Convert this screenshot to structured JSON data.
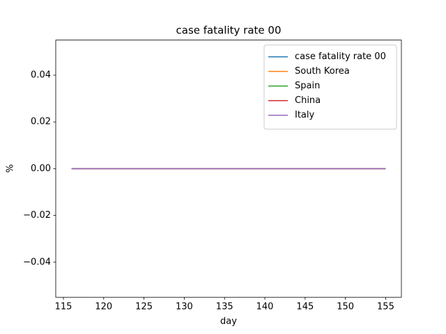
{
  "chart_data": {
    "type": "line",
    "title": "case fatality rate 00",
    "xlabel": "day",
    "ylabel": "%",
    "x": [
      116,
      117,
      118,
      119,
      120,
      121,
      122,
      123,
      124,
      125,
      126,
      127,
      128,
      129,
      130,
      131,
      132,
      133,
      134,
      135,
      136,
      137,
      138,
      139,
      140,
      141,
      142,
      143,
      144,
      145,
      146,
      147,
      148,
      149,
      150,
      151,
      152,
      153,
      154,
      155
    ],
    "series": [
      {
        "name": "case fatality rate 00",
        "color": "#1f77b4",
        "values": [
          0,
          0,
          0,
          0,
          0,
          0,
          0,
          0,
          0,
          0,
          0,
          0,
          0,
          0,
          0,
          0,
          0,
          0,
          0,
          0,
          0,
          0,
          0,
          0,
          0,
          0,
          0,
          0,
          0,
          0,
          0,
          0,
          0,
          0,
          0,
          0,
          0,
          0,
          0,
          0
        ]
      },
      {
        "name": "South Korea",
        "color": "#ff7f0e",
        "values": [
          0,
          0,
          0,
          0,
          0,
          0,
          0,
          0,
          0,
          0,
          0,
          0,
          0,
          0,
          0,
          0,
          0,
          0,
          0,
          0,
          0,
          0,
          0,
          0,
          0,
          0,
          0,
          0,
          0,
          0,
          0,
          0,
          0,
          0,
          0,
          0,
          0,
          0,
          0,
          0
        ]
      },
      {
        "name": "Spain",
        "color": "#2ca02c",
        "values": [
          0,
          0,
          0,
          0,
          0,
          0,
          0,
          0,
          0,
          0,
          0,
          0,
          0,
          0,
          0,
          0,
          0,
          0,
          0,
          0,
          0,
          0,
          0,
          0,
          0,
          0,
          0,
          0,
          0,
          0,
          0,
          0,
          0,
          0,
          0,
          0,
          0,
          0,
          0,
          0
        ]
      },
      {
        "name": "China",
        "color": "#d62728",
        "values": [
          0,
          0,
          0,
          0,
          0,
          0,
          0,
          0,
          0,
          0,
          0,
          0,
          0,
          0,
          0,
          0,
          0,
          0,
          0,
          0,
          0,
          0,
          0,
          0,
          0,
          0,
          0,
          0,
          0,
          0,
          0,
          0,
          0,
          0,
          0,
          0,
          0,
          0,
          0,
          0
        ]
      },
      {
        "name": "Italy",
        "color": "#9467bd",
        "values": [
          0,
          0,
          0,
          0,
          0,
          0,
          0,
          0,
          0,
          0,
          0,
          0,
          0,
          0,
          0,
          0,
          0,
          0,
          0,
          0,
          0,
          0,
          0,
          0,
          0,
          0,
          0,
          0,
          0,
          0,
          0,
          0,
          0,
          0,
          0,
          0,
          0,
          0,
          0,
          0
        ]
      }
    ],
    "xlim": [
      114.05,
      156.95
    ],
    "xticks": [
      115,
      120,
      125,
      130,
      135,
      140,
      145,
      150,
      155
    ],
    "ylim": [
      -0.055,
      0.055
    ],
    "yticks": [
      {
        "value": -0.04,
        "label": "−0.04"
      },
      {
        "value": -0.02,
        "label": "−0.02"
      },
      {
        "value": 0,
        "label": "0.00"
      },
      {
        "value": 0.02,
        "label": "0.02"
      },
      {
        "value": 0.04,
        "label": "0.04"
      }
    ],
    "legend": "upper right"
  }
}
